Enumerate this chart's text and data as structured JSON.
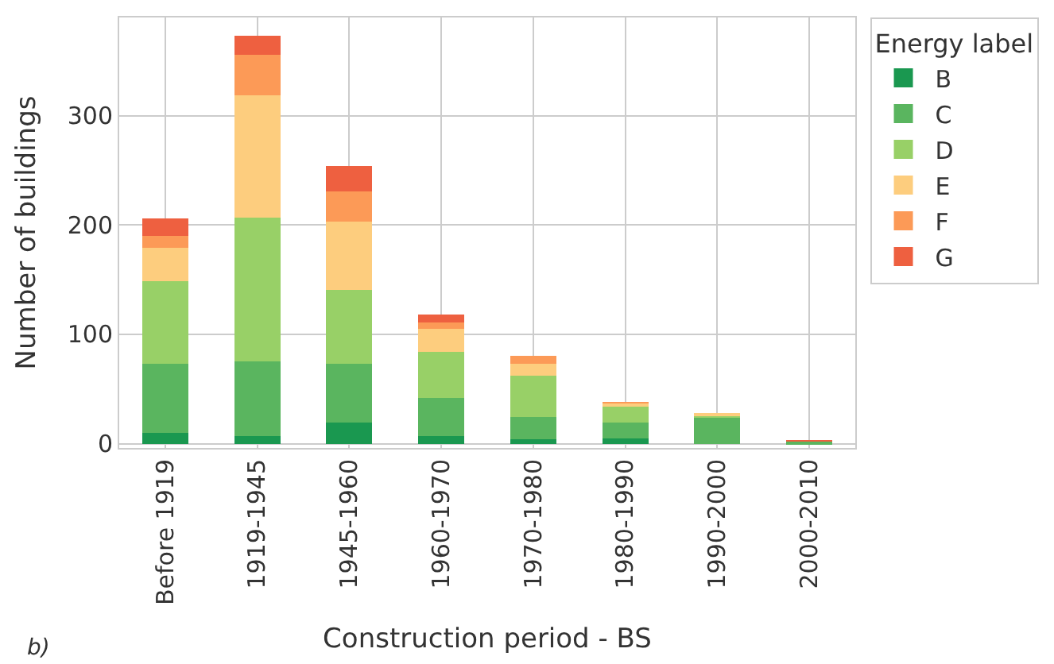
{
  "chart_data": {
    "type": "bar",
    "stacked": true,
    "xlabel": "Construction period - BS",
    "ylabel": "Number of buildings",
    "legend_title": "Energy label",
    "legend": "right",
    "grid": true,
    "categories": [
      "Before 1919",
      "1919-1945",
      "1945-1960",
      "1960-1970",
      "1970-1980",
      "1980-1990",
      "1990-2000",
      "2000-2010"
    ],
    "series": [
      {
        "name": "B",
        "color": "#1a9850",
        "values": [
          10,
          7,
          19,
          7,
          4,
          5,
          0,
          0
        ]
      },
      {
        "name": "C",
        "color": "#5ab55f",
        "values": [
          63,
          68,
          54,
          35,
          20,
          14,
          24,
          2
        ]
      },
      {
        "name": "D",
        "color": "#98d067",
        "values": [
          76,
          132,
          68,
          42,
          38,
          15,
          2,
          0
        ]
      },
      {
        "name": "E",
        "color": "#fdcd7e",
        "values": [
          30,
          112,
          62,
          21,
          11,
          3,
          1,
          0
        ]
      },
      {
        "name": "F",
        "color": "#fc9a57",
        "values": [
          11,
          37,
          28,
          6,
          7,
          1,
          0,
          0
        ]
      },
      {
        "name": "G",
        "color": "#ee6040",
        "values": [
          16,
          17,
          23,
          7,
          0,
          0,
          0,
          1
        ]
      }
    ],
    "ylim": [
      -4,
      390
    ],
    "yticks": [
      0,
      100,
      200,
      300
    ],
    "annotations": [
      "b)"
    ]
  }
}
